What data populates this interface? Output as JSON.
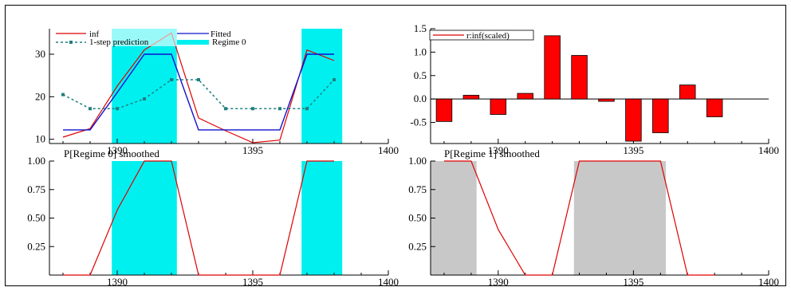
{
  "colors": {
    "inf": "#e00000",
    "fitted": "#1010d0",
    "prediction": "#208080",
    "regime_shade": "#00f0f0",
    "regime1_shade": "#c8c8c8",
    "bars": "#ff0000",
    "frame": "#000000"
  },
  "chart_data": [
    {
      "type": "line",
      "title": "",
      "xlim": [
        1387.5,
        1400
      ],
      "ylim": [
        9,
        36
      ],
      "xticks": [
        1390,
        1395,
        1400
      ],
      "yticks": [
        10,
        20,
        30
      ],
      "legend": {
        "placement": "top",
        "entries": [
          "inf",
          "Fitted",
          "1-step prediction",
          "Regime 0"
        ]
      },
      "shaded_regions": [
        [
          1389.8,
          1392.2
        ],
        [
          1396.8,
          1398.3
        ]
      ],
      "series": [
        {
          "name": "inf",
          "x": [
            1388,
            1389,
            1390,
            1391,
            1392,
            1393,
            1394,
            1395,
            1396,
            1397,
            1398
          ],
          "values": [
            10.5,
            12.5,
            22.5,
            31,
            35,
            15,
            12,
            9.2,
            9.8,
            31,
            28.5
          ]
        },
        {
          "name": "Fitted",
          "x": [
            1388,
            1389,
            1390,
            1391,
            1392,
            1393,
            1394,
            1395,
            1396,
            1397,
            1398
          ],
          "values": [
            12.2,
            12.2,
            21,
            30,
            30,
            12.2,
            12.2,
            12.2,
            12.2,
            30,
            30
          ]
        },
        {
          "name": "1-step prediction",
          "x": [
            1388,
            1389,
            1390,
            1391,
            1392,
            1393,
            1394,
            1395,
            1396,
            1397,
            1398
          ],
          "values": [
            20.5,
            17.2,
            17.2,
            19.5,
            24,
            24,
            17.2,
            17.2,
            17.2,
            17.2,
            24
          ]
        }
      ]
    },
    {
      "type": "bar",
      "title": "",
      "xlim": [
        1387.5,
        1400
      ],
      "ylim": [
        -0.95,
        1.5
      ],
      "xticks": [
        1390,
        1395,
        1400
      ],
      "yticks": [
        -0.5,
        0.0,
        0.5,
        1.0,
        1.5
      ],
      "ytick_labels": [
        "-0.5",
        "0.0",
        "0.5",
        "1.0",
        "1.5"
      ],
      "legend": {
        "placement": "top-left",
        "entries": [
          "r:inf(scaled)"
        ]
      },
      "x": [
        1388,
        1389,
        1390,
        1391,
        1392,
        1393,
        1394,
        1395,
        1396,
        1397,
        1398
      ],
      "values": [
        -0.48,
        0.08,
        -0.33,
        0.12,
        1.35,
        0.93,
        -0.05,
        -0.9,
        -0.72,
        0.3,
        -0.38
      ]
    },
    {
      "type": "area",
      "title": "P[Regime 0] smoothed",
      "xlim": [
        1387.5,
        1400
      ],
      "ylim": [
        0,
        1
      ],
      "xticks": [
        1390,
        1395,
        1400
      ],
      "yticks": [
        0.25,
        0.5,
        0.75,
        1.0
      ],
      "ytick_labels": [
        "0.25",
        "0.50",
        "0.75",
        "1.00"
      ],
      "shaded_regions": [
        [
          1389.8,
          1392.2
        ],
        [
          1396.8,
          1398.3
        ]
      ],
      "x": [
        1388,
        1389,
        1390,
        1391,
        1392,
        1393,
        1394,
        1395,
        1396,
        1397,
        1398
      ],
      "values": [
        0,
        0,
        0.57,
        1,
        1,
        0,
        0,
        0,
        0,
        1,
        1
      ]
    },
    {
      "type": "area",
      "title": "P[Regime 1] smoothed",
      "xlim": [
        1387.5,
        1400
      ],
      "ylim": [
        0,
        1
      ],
      "xticks": [
        1390,
        1395,
        1400
      ],
      "yticks": [
        0.25,
        0.5,
        0.75,
        1.0
      ],
      "ytick_labels": [
        "0.25",
        "0.50",
        "0.75",
        "1.00"
      ],
      "shaded_regions": [
        [
          1387.5,
          1389.2
        ],
        [
          1392.8,
          1396.2
        ]
      ],
      "x": [
        1388,
        1389,
        1390,
        1391,
        1392,
        1393,
        1394,
        1395,
        1396,
        1397,
        1398
      ],
      "values": [
        1,
        1,
        0.4,
        0,
        0,
        1,
        1,
        1,
        1,
        0,
        0
      ]
    }
  ]
}
